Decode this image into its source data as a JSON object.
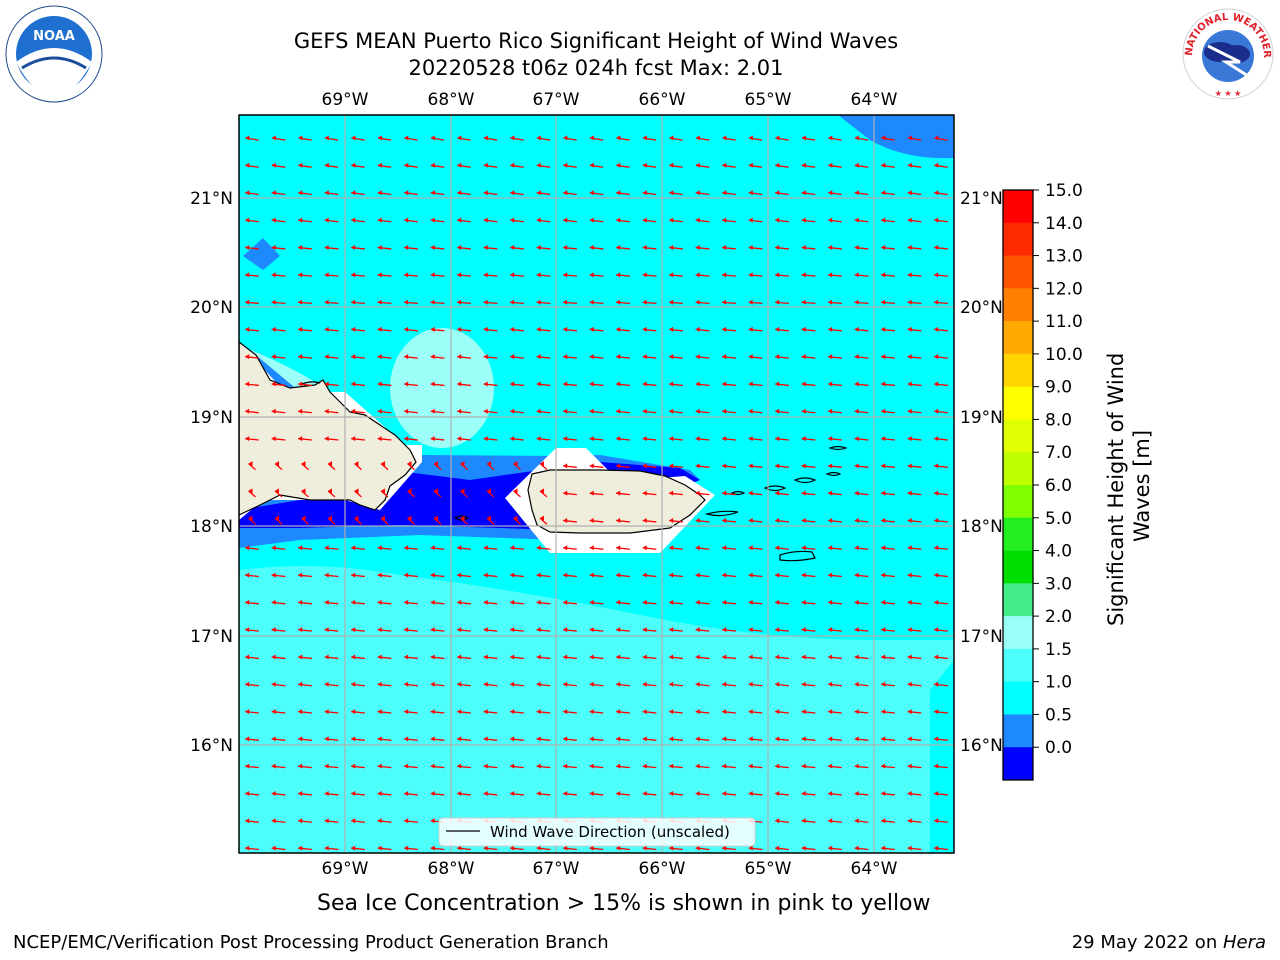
{
  "title": {
    "line1": "GEFS MEAN Puerto Rico Significant Height of Wind Waves",
    "line2": "20220528 t06z 024h fcst   Max: 2.01"
  },
  "map": {
    "lon_labels": [
      "69°W",
      "68°W",
      "67°W",
      "66°W",
      "65°W",
      "64°W"
    ],
    "lat_labels": [
      "21°N",
      "20°N",
      "19°N",
      "18°N",
      "17°N",
      "16°N"
    ],
    "legend_label": "Wind Wave Direction (unscaled)",
    "field_colors": {
      "water_main": "#00ffff",
      "water_light": "#4dfffa",
      "water_pale": "#9cfff8",
      "band_0_5_1": "#1e88ff",
      "band_0_0_5": "#0000ff",
      "land": "#efeddc",
      "arrow": "#ff0000"
    }
  },
  "colorbar": {
    "title": "Significant Height of Wind Waves [m]",
    "ticks": [
      "15.0",
      "14.0",
      "13.0",
      "12.0",
      "11.0",
      "10.0",
      "9.0",
      "8.0",
      "7.0",
      "6.0",
      "5.0",
      "4.0",
      "3.0",
      "2.0",
      "1.5",
      "1.0",
      "0.5",
      "0.0"
    ],
    "colors": [
      "#ff0000",
      "#ff2a00",
      "#ff5500",
      "#ff8000",
      "#ffaa00",
      "#ffd400",
      "#ffff00",
      "#e0ff00",
      "#c0ff00",
      "#80ff00",
      "#22ee22",
      "#00dd00",
      "#44ee88",
      "#99fff8",
      "#4dfffa",
      "#00ffff",
      "#1e88ff",
      "#0000ff"
    ]
  },
  "note": "Sea Ice Concentration > 15% is shown in pink to yellow",
  "footer": {
    "left": "NCEP/EMC/Verification Post Processing Product Generation Branch",
    "right_prefix": "29 May 2022 on ",
    "right_em": "Hera"
  },
  "logos": {
    "noaa": "NOAA",
    "nws": "NATIONAL WEATHER SERVICE"
  }
}
